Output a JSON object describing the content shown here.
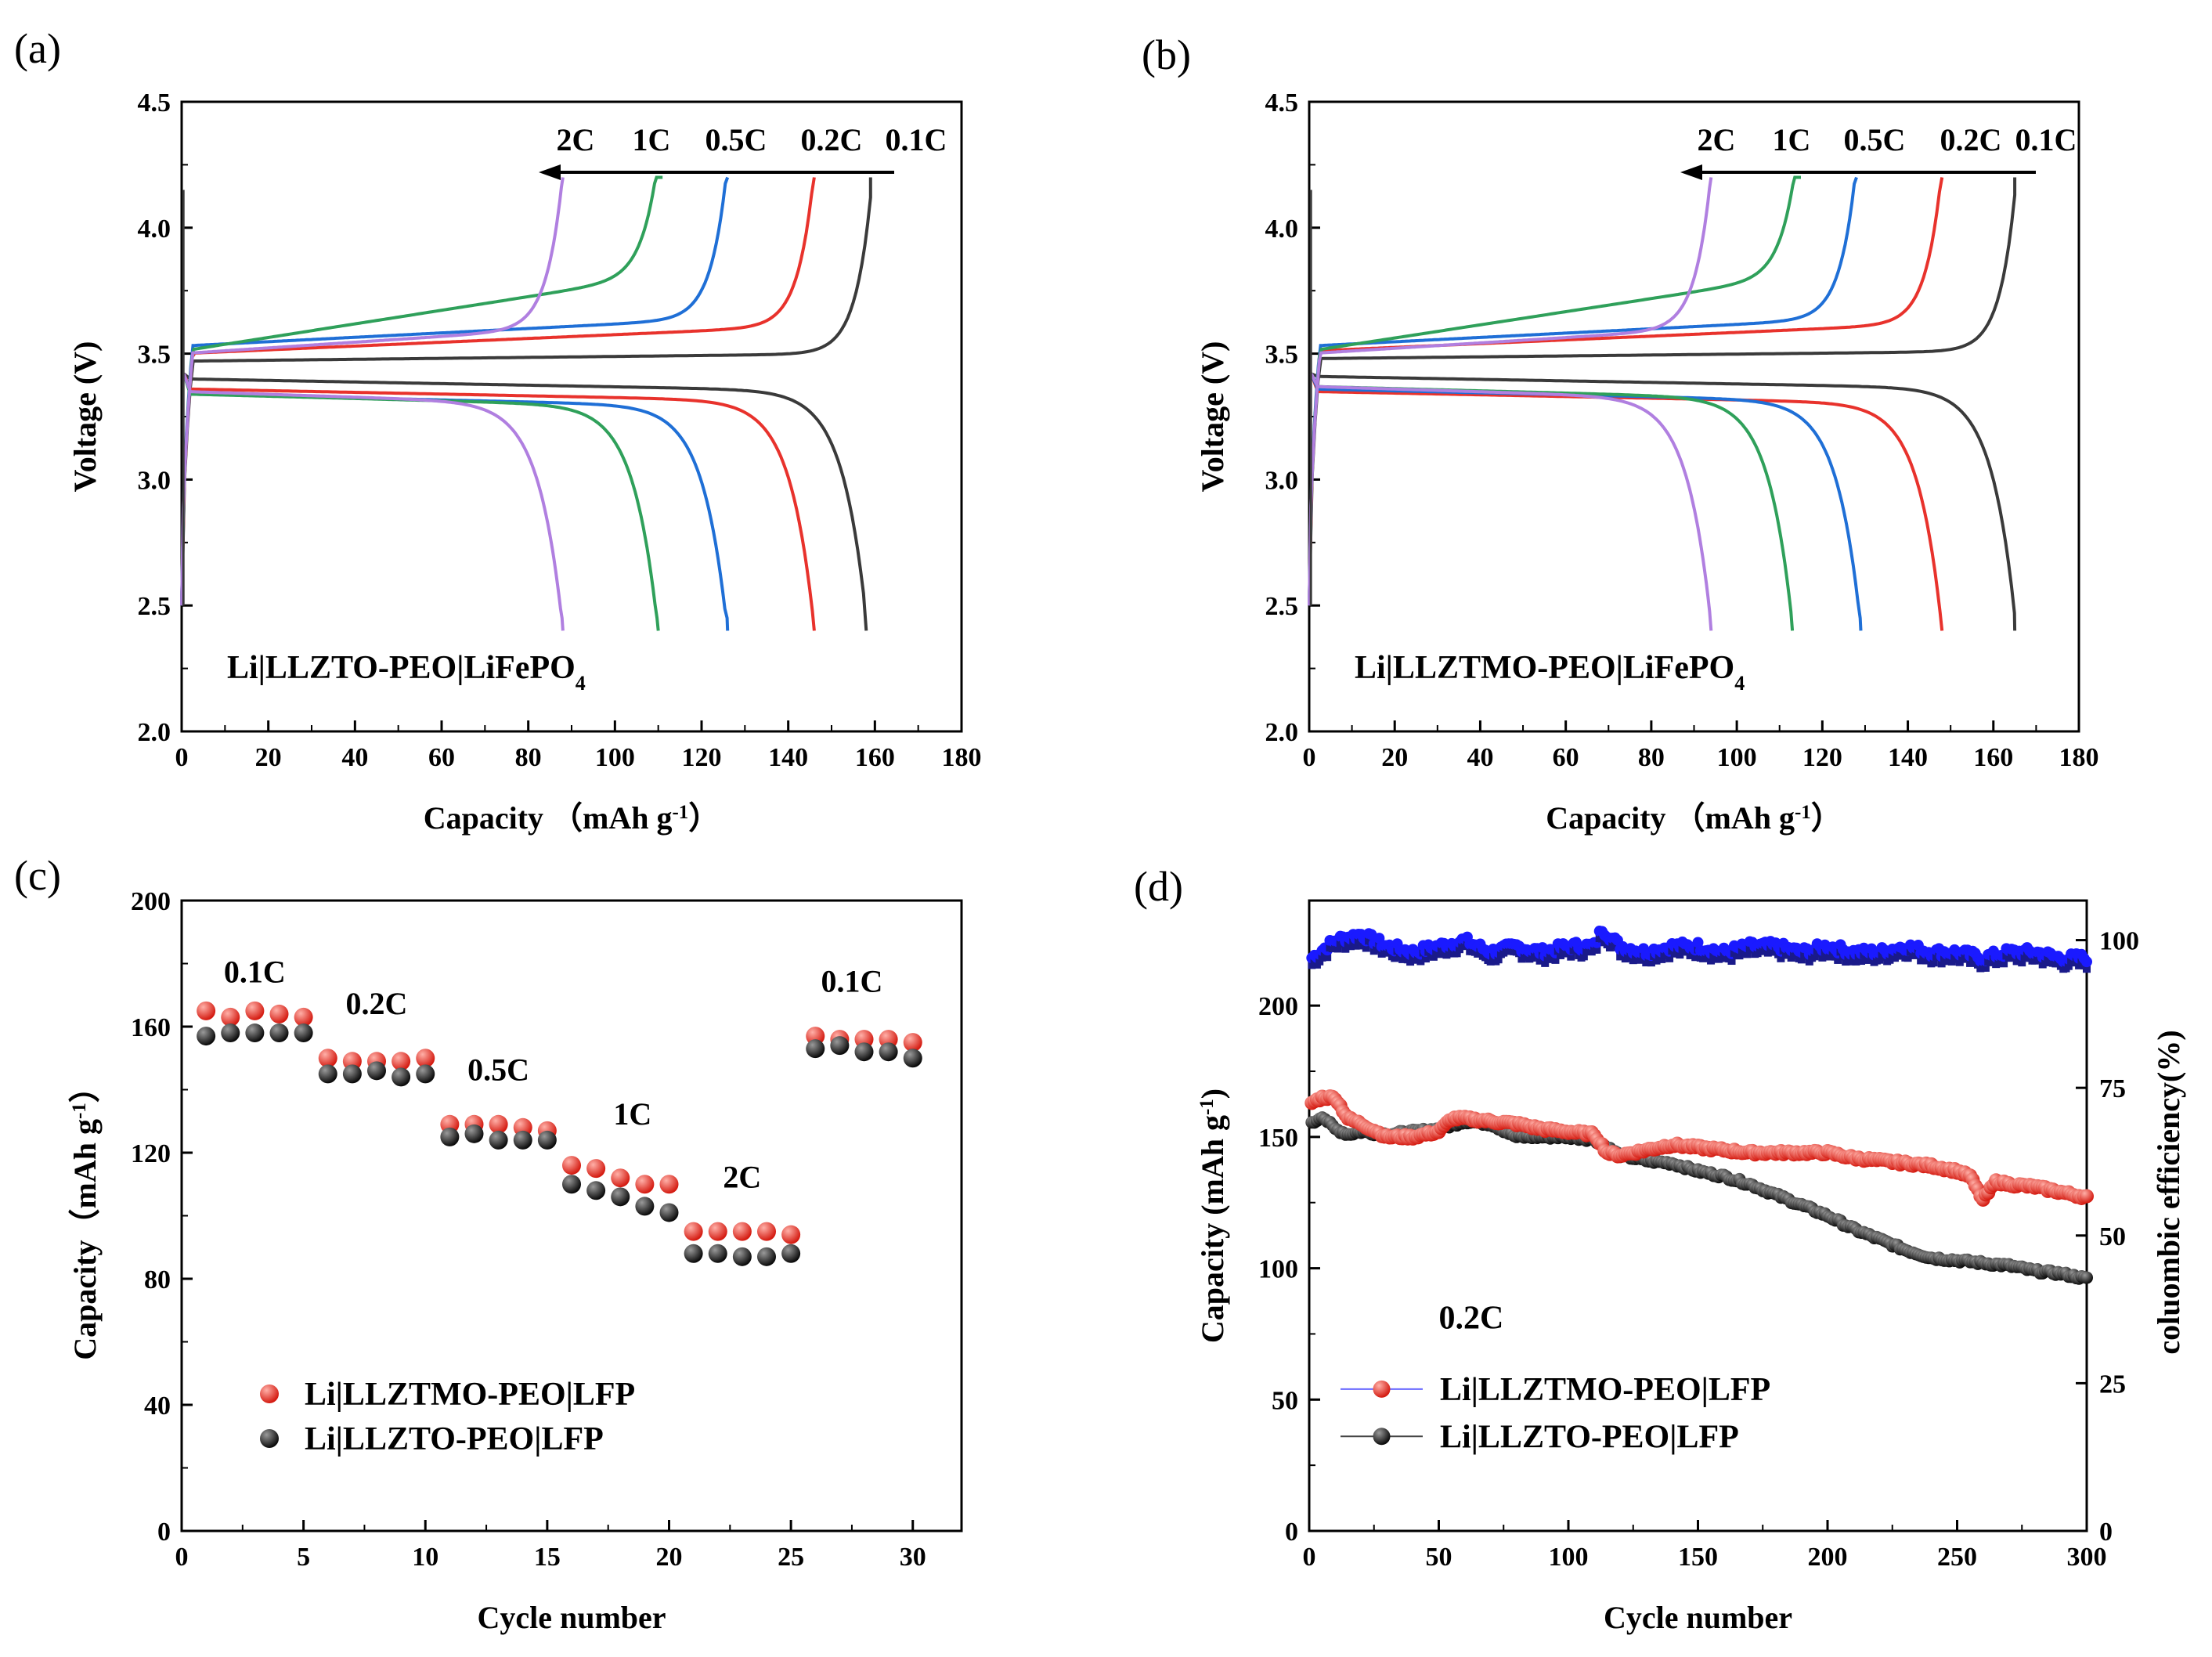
{
  "chart_data": [
    {
      "id": "a",
      "type": "line",
      "panel_label": "(a)",
      "xlabel": "Capacity  （mAh g⁻¹）",
      "ylabel": "Voltage (V)",
      "xlim": [
        0,
        180
      ],
      "ylim": [
        2.0,
        4.5
      ],
      "xticks": [
        "0",
        "20",
        "40",
        "60",
        "80",
        "100",
        "120",
        "140",
        "160",
        "180"
      ],
      "yticks": [
        "2.0",
        "2.5",
        "3.0",
        "3.5",
        "4.0",
        "4.5"
      ],
      "annotation": "Li|LLZTO-PEO|LiFePO₄",
      "annotation_color": "#000000",
      "rate_labels": [
        "2C",
        "1C",
        "0.5C",
        "0.2C",
        "0.1C"
      ],
      "series": [
        {
          "name": "0.1C",
          "color": "#3a3a3a",
          "charge_end": 159,
          "discharge_end": 158,
          "plateau_charge": 3.49,
          "plateau_discharge": 3.36,
          "polarization": 0.03
        },
        {
          "name": "0.2C",
          "color": "#e8322c",
          "charge_end": 146,
          "discharge_end": 146,
          "plateau_charge": 3.52,
          "plateau_discharge": 3.32,
          "polarization": 0.11
        },
        {
          "name": "0.5C",
          "color": "#1f6fd6",
          "charge_end": 126,
          "discharge_end": 126,
          "plateau_charge": 3.55,
          "plateau_discharge": 3.3,
          "polarization": 0.11
        },
        {
          "name": "1C",
          "color": "#2fa05a",
          "charge_end": 111,
          "discharge_end": 110,
          "plateau_charge": 3.53,
          "plateau_discharge": 3.3,
          "polarization": 0.3
        },
        {
          "name": "2C",
          "color": "#b07fe0",
          "charge_end": 88,
          "discharge_end": 88,
          "plateau_charge": 3.52,
          "plateau_discharge": 3.31,
          "polarization": 0.1
        }
      ]
    },
    {
      "id": "b",
      "type": "line",
      "panel_label": "(b)",
      "xlabel": "Capacity  （mAh g⁻¹）",
      "ylabel": "Voltage (V)",
      "xlim": [
        0,
        180
      ],
      "ylim": [
        2.0,
        4.5
      ],
      "xticks": [
        "0",
        "20",
        "40",
        "60",
        "80",
        "100",
        "120",
        "140",
        "160",
        "180"
      ],
      "yticks": [
        "2.0",
        "2.5",
        "3.0",
        "3.5",
        "4.0",
        "4.5"
      ],
      "annotation": "Li|LLZTMO-PEO|LiFePO₄",
      "annotation_color": "#e8322c",
      "rate_labels": [
        "2C",
        "1C",
        "0.5C",
        "0.2C",
        "0.1C"
      ],
      "series": [
        {
          "name": "0.1C",
          "color": "#3a3a3a",
          "charge_end": 165,
          "discharge_end": 165,
          "plateau_charge": 3.5,
          "plateau_discharge": 3.37,
          "polarization": 0.03
        },
        {
          "name": "0.2C",
          "color": "#e8322c",
          "charge_end": 148,
          "discharge_end": 148,
          "plateau_charge": 3.53,
          "plateau_discharge": 3.31,
          "polarization": 0.11
        },
        {
          "name": "0.5C",
          "color": "#1f6fd6",
          "charge_end": 128,
          "discharge_end": 129,
          "plateau_charge": 3.55,
          "plateau_discharge": 3.32,
          "polarization": 0.11
        },
        {
          "name": "1C",
          "color": "#2fa05a",
          "charge_end": 115,
          "discharge_end": 113,
          "plateau_charge": 3.53,
          "plateau_discharge": 3.33,
          "polarization": 0.3
        },
        {
          "name": "2C",
          "color": "#b07fe0",
          "charge_end": 94,
          "discharge_end": 94,
          "plateau_charge": 3.52,
          "plateau_discharge": 3.33,
          "polarization": 0.1
        }
      ]
    },
    {
      "id": "c",
      "type": "scatter",
      "panel_label": "(c)",
      "xlabel": "Cycle  number",
      "ylabel": "Capacity（mAh g⁻¹）",
      "xlim": [
        0,
        32
      ],
      "ylim": [
        0,
        200
      ],
      "xticks": [
        "0",
        "5",
        "10",
        "15",
        "20",
        "25",
        "30"
      ],
      "yticks": [
        "0",
        "40",
        "80",
        "120",
        "160",
        "200"
      ],
      "rate_labels": [
        {
          "text": "0.1C",
          "x": 3,
          "y": 174
        },
        {
          "text": "0.2C",
          "x": 8,
          "y": 164
        },
        {
          "text": "0.5C",
          "x": 13,
          "y": 143
        },
        {
          "text": "1C",
          "x": 18.5,
          "y": 129
        },
        {
          "text": "2C",
          "x": 23,
          "y": 109
        },
        {
          "text": "0.1C",
          "x": 27.5,
          "y": 171
        }
      ],
      "legend": [
        "Li|LLZTMO-PEO|LFP",
        "Li|LLZTO-PEO|LFP"
      ],
      "series": [
        {
          "name": "Li|LLZTMO-PEO|LFP",
          "color": "#e8322c",
          "x": [
            1,
            2,
            3,
            4,
            5,
            6,
            7,
            8,
            9,
            10,
            11,
            12,
            13,
            14,
            15,
            16,
            17,
            18,
            19,
            20,
            21,
            22,
            23,
            24,
            25,
            26,
            27,
            28,
            29,
            30
          ],
          "values": [
            165,
            163,
            165,
            164,
            163,
            150,
            149,
            149,
            149,
            150,
            129,
            129,
            129,
            128,
            127,
            116,
            115,
            112,
            110,
            110,
            95,
            95,
            95,
            95,
            94,
            157,
            156,
            156,
            156,
            155
          ]
        },
        {
          "name": "Li|LLZTO-PEO|LFP",
          "color": "#111111",
          "x": [
            1,
            2,
            3,
            4,
            5,
            6,
            7,
            8,
            9,
            10,
            11,
            12,
            13,
            14,
            15,
            16,
            17,
            18,
            19,
            20,
            21,
            22,
            23,
            24,
            25,
            26,
            27,
            28,
            29,
            30
          ],
          "values": [
            157,
            158,
            158,
            158,
            158,
            145,
            145,
            146,
            144,
            145,
            125,
            126,
            124,
            124,
            124,
            110,
            108,
            106,
            103,
            101,
            88,
            88,
            87,
            87,
            88,
            153,
            154,
            152,
            152,
            150
          ]
        }
      ]
    },
    {
      "id": "d",
      "type": "scatter",
      "panel_label": "(d)",
      "xlabel": "Cycle number",
      "ylabel": "Capacity (mAh g⁻¹)",
      "ylabel_right": "coluombic efficiency(%)",
      "xlim": [
        0,
        300
      ],
      "ylim": [
        0,
        240
      ],
      "ylim_right": [
        0,
        106.7
      ],
      "xticks": [
        "0",
        "50",
        "100",
        "150",
        "200",
        "250",
        "300"
      ],
      "yticks": [
        "0",
        "50",
        "100",
        "150",
        "200"
      ],
      "yticks_right": [
        "0",
        "25",
        "50",
        "75",
        "100"
      ],
      "annotation": "0.2C",
      "legend": [
        "Li|LLZTMO-PEO|LFP",
        "Li|LLZTO-PEO|LFP"
      ],
      "series": [
        {
          "name": "Li|LLZTMO-PEO|LFP",
          "color": "#e8322c",
          "x": [
            1,
            5,
            10,
            15,
            20,
            30,
            40,
            50,
            55,
            60,
            70,
            80,
            90,
            100,
            110,
            115,
            120,
            130,
            140,
            150,
            160,
            170,
            180,
            190,
            200,
            210,
            220,
            230,
            240,
            250,
            255,
            260,
            265,
            270,
            280,
            290,
            300
          ],
          "values": [
            163,
            165,
            165,
            157,
            155,
            150,
            150,
            152,
            157,
            157,
            156,
            155,
            153,
            152,
            151,
            144,
            143,
            145,
            147,
            146,
            145,
            144,
            144,
            144,
            144,
            142,
            141,
            140,
            139,
            137,
            135,
            126,
            133,
            132,
            131,
            129,
            127
          ]
        },
        {
          "name": "Li|LLZTO-PEO|LFP",
          "color": "#111111",
          "x": [
            1,
            5,
            10,
            15,
            20,
            30,
            40,
            50,
            60,
            70,
            80,
            90,
            100,
            110,
            120,
            130,
            140,
            150,
            160,
            170,
            180,
            190,
            200,
            210,
            220,
            230,
            240,
            250,
            260,
            270,
            280,
            290,
            300
          ],
          "values": [
            155,
            158,
            153,
            151,
            152,
            151,
            152,
            153,
            156,
            155,
            150,
            150,
            150,
            149,
            143,
            141,
            140,
            137,
            135,
            132,
            128,
            124,
            120,
            115,
            111,
            107,
            104,
            103,
            102,
            101,
            99,
            98,
            96
          ]
        },
        {
          "name": "coluombic efficiency",
          "color": "#1a1aff",
          "axis": "right",
          "x": [
            1,
            10,
            20,
            30,
            40,
            50,
            60,
            70,
            80,
            90,
            100,
            110,
            113,
            120,
            130,
            140,
            150,
            160,
            170,
            180,
            190,
            200,
            210,
            220,
            230,
            240,
            250,
            260,
            270,
            280,
            290,
            300
          ],
          "values": [
            97,
            100,
            101,
            99,
            98,
            99,
            100,
            98,
            99,
            98,
            99,
            99,
            102,
            99,
            98,
            99,
            99,
            98,
            99,
            99,
            98,
            99,
            98,
            98,
            99,
            98,
            98,
            97,
            98,
            98,
            97,
            97
          ]
        }
      ]
    }
  ]
}
